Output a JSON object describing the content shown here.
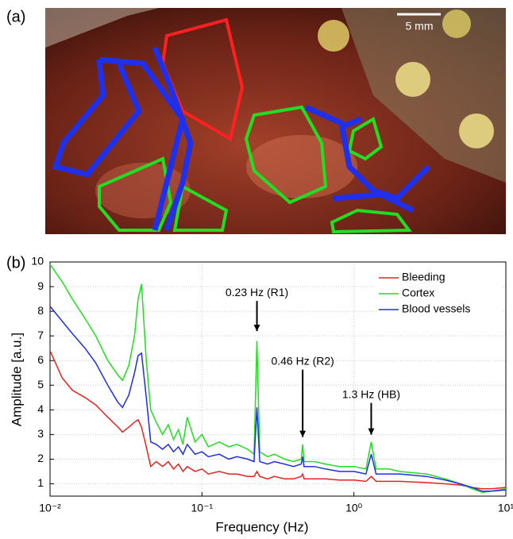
{
  "panel_a": {
    "label": "(a)",
    "scale_bar": "5 mm"
  },
  "chart_data": {
    "type": "line",
    "panel_label": "(b)",
    "x_label": "Frequency (Hz)",
    "y_label": "Amplitude [a.u.]",
    "log_x": true,
    "grid": true,
    "legend": "top-right",
    "xlim": [
      0.01,
      10
    ],
    "xticks": [
      {
        "value": 0.01,
        "label": "10⁻²"
      },
      {
        "value": 0.1,
        "label": "10⁻¹"
      },
      {
        "value": 1,
        "label": "10⁰"
      },
      {
        "value": 10,
        "label": "10¹"
      }
    ],
    "ylim": [
      0.5,
      10
    ],
    "yticks": [
      1,
      2,
      3,
      4,
      5,
      6,
      7,
      8,
      9,
      10
    ],
    "x": [
      0.01,
      0.012,
      0.014,
      0.017,
      0.02,
      0.024,
      0.028,
      0.03,
      0.033,
      0.036,
      0.038,
      0.04,
      0.043,
      0.046,
      0.05,
      0.055,
      0.06,
      0.065,
      0.07,
      0.075,
      0.08,
      0.09,
      0.1,
      0.11,
      0.13,
      0.15,
      0.17,
      0.2,
      0.22,
      0.23,
      0.24,
      0.27,
      0.3,
      0.35,
      0.4,
      0.45,
      0.46,
      0.47,
      0.55,
      0.65,
      0.8,
      1,
      1.2,
      1.3,
      1.4,
      1.7,
      2,
      3,
      4,
      5,
      6,
      7,
      8,
      10
    ],
    "series": [
      {
        "name": "Bleeding",
        "color": "#e8231f",
        "values": [
          6.4,
          5.3,
          4.8,
          4.5,
          4.2,
          3.7,
          3.3,
          3.1,
          3.3,
          3.5,
          3.6,
          3.3,
          2.5,
          1.7,
          1.9,
          1.7,
          1.9,
          1.6,
          1.8,
          1.5,
          1.7,
          1.5,
          1.6,
          1.4,
          1.5,
          1.4,
          1.4,
          1.3,
          1.3,
          1.5,
          1.3,
          1.2,
          1.3,
          1.2,
          1.2,
          1.3,
          1.4,
          1.2,
          1.2,
          1.2,
          1.15,
          1.15,
          1.1,
          1.3,
          1.1,
          1.1,
          1.1,
          1.05,
          1.0,
          0.95,
          0.85,
          0.8,
          0.8,
          0.85
        ]
      },
      {
        "name": "Cortex",
        "color": "#22dd22",
        "values": [
          9.9,
          9.2,
          8.5,
          7.7,
          7.0,
          6.0,
          5.4,
          5.2,
          5.8,
          7.0,
          8.5,
          9.1,
          6.0,
          4.0,
          3.5,
          3.0,
          3.4,
          2.8,
          3.2,
          2.6,
          3.7,
          2.7,
          3.0,
          2.5,
          2.7,
          2.5,
          2.6,
          2.4,
          2.2,
          6.8,
          2.3,
          2.1,
          2.2,
          2.0,
          1.9,
          2.0,
          2.6,
          1.9,
          1.9,
          1.8,
          1.7,
          1.7,
          1.6,
          2.7,
          1.6,
          1.6,
          1.5,
          1.4,
          1.2,
          1.0,
          0.8,
          0.65,
          0.7,
          0.8
        ]
      },
      {
        "name": "Blood vessels",
        "color": "#1f2fe0",
        "values": [
          8.2,
          7.6,
          7.1,
          6.5,
          5.9,
          5.0,
          4.3,
          4.1,
          4.6,
          5.5,
          6.2,
          6.3,
          4.5,
          2.7,
          2.6,
          2.4,
          2.6,
          2.3,
          2.5,
          2.2,
          2.6,
          2.2,
          2.3,
          2.1,
          2.2,
          2.0,
          2.1,
          2.0,
          1.9,
          4.1,
          1.9,
          1.8,
          1.9,
          1.8,
          1.7,
          1.8,
          2.1,
          1.7,
          1.7,
          1.6,
          1.5,
          1.5,
          1.4,
          2.2,
          1.4,
          1.4,
          1.4,
          1.3,
          1.15,
          1.0,
          0.85,
          0.7,
          0.7,
          0.75
        ]
      }
    ],
    "annotations": [
      {
        "text": "0.23 Hz (R1)",
        "x": 0.23,
        "y": 7.0
      },
      {
        "text": "0.46 Hz (R2)",
        "x": 0.46,
        "y": 2.7
      },
      {
        "text": "1.3 Hz (HB)",
        "x": 1.3,
        "y": 2.8
      }
    ]
  }
}
